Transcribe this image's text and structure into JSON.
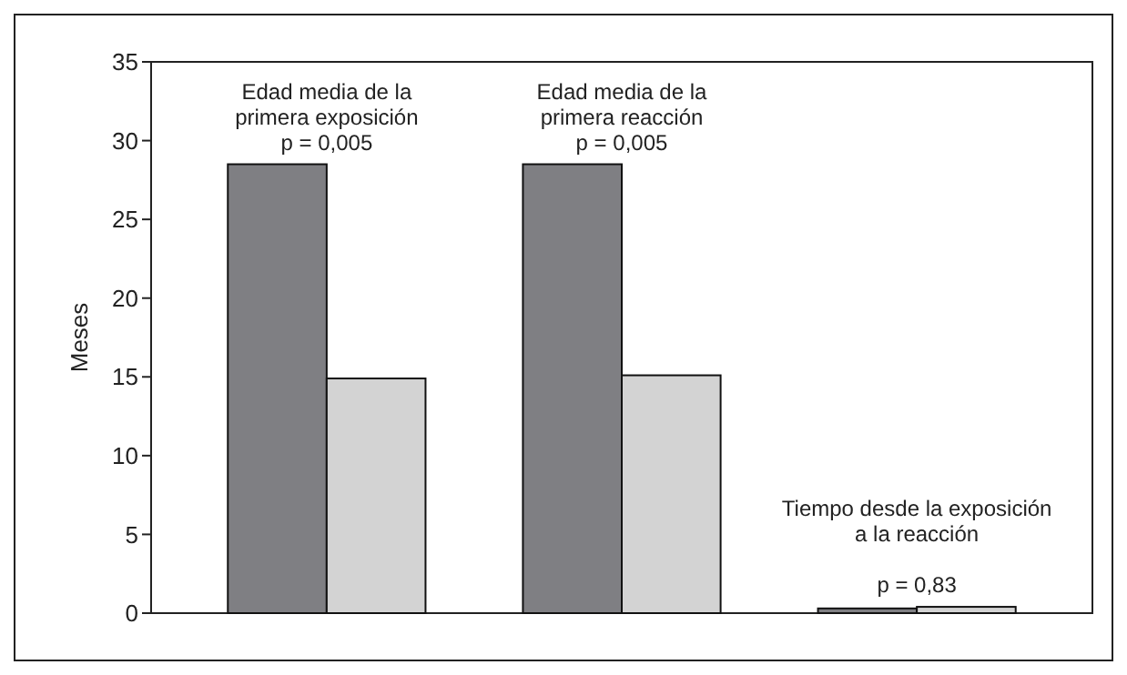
{
  "chart_data": {
    "type": "bar",
    "ylabel": "Meses",
    "categories": [
      null,
      null,
      null
    ],
    "series": [
      {
        "color": "#7f7f83",
        "values": [
          28.5,
          28.5,
          0.3
        ]
      },
      {
        "color": "#d3d3d3",
        "values": [
          14.9,
          15.1,
          0.4
        ]
      }
    ],
    "ylim": [
      0,
      35
    ],
    "yticks": [
      0,
      5,
      10,
      15,
      20,
      25,
      30,
      35
    ],
    "grid": false,
    "annotations": [
      "Edad media de la\nprimera exposición\np = 0,005",
      "Edad media de la\nprimera reacción\np = 0,005",
      "Tiempo desde la exposición\na la reacción\n\np = 0,83"
    ]
  }
}
